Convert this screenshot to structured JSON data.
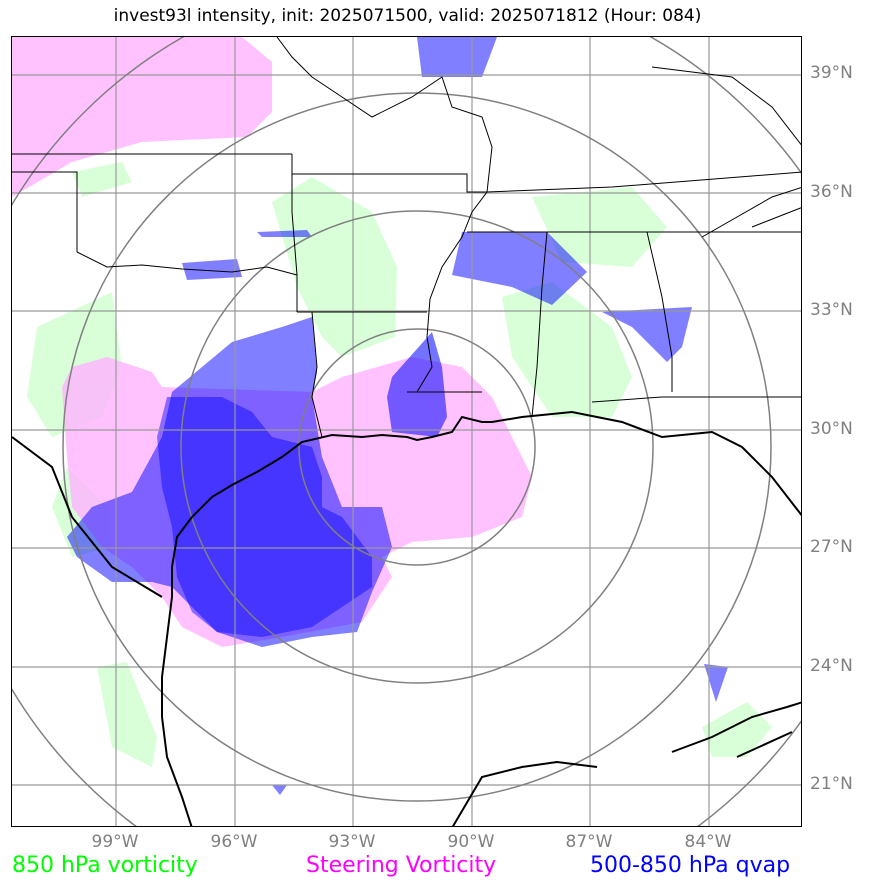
{
  "title": "invest93l intensity, init: 2025071500, valid: 2025071812 (Hour: 084)",
  "lat_labels": [
    "39°N",
    "36°N",
    "33°N",
    "30°N",
    "27°N",
    "24°N",
    "21°N"
  ],
  "lon_labels": [
    "99°W",
    "96°W",
    "93°W",
    "90°W",
    "87°W",
    "84°W"
  ],
  "legend": {
    "vorticity_850": {
      "label": "850 hPa vorticity",
      "color": "#00ff00"
    },
    "steering_vorticity": {
      "label": "Steering Vorticity",
      "color": "#ff00ff"
    },
    "qvap": {
      "label": "500-850 hPa qvap",
      "color": "#0000ff"
    }
  },
  "colors": {
    "vorticity_fill": "#ccffcc",
    "steering_fill": "#ffb3ff",
    "qvap_fill": "#0000ff",
    "grid": "#999999",
    "range_rings": "#808080",
    "coastline": "#000000"
  }
}
